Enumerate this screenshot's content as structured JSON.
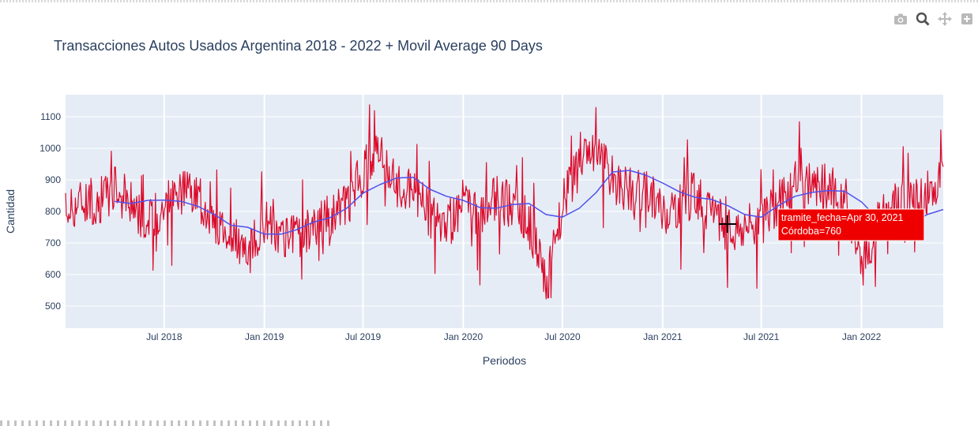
{
  "modebar": {
    "icons": [
      "camera-icon",
      "zoom-icon",
      "pan-icon",
      "plus-square-icon"
    ],
    "icon_color": "#b9b9b9",
    "active_color": "#505050"
  },
  "chart_data": {
    "type": "line",
    "title": "Transacciones Autos Usados Argentina 2018 - 2022 + Movil Average 90 Days",
    "xlabel": "Periodos",
    "ylabel": "Cantidad",
    "x_range": [
      "2018-01-01",
      "2022-05-31"
    ],
    "ylim": [
      430,
      1170
    ],
    "x_ticks": [
      {
        "date": "2018-07-01",
        "label": "Jul 2018"
      },
      {
        "date": "2019-01-01",
        "label": "Jan 2019"
      },
      {
        "date": "2019-07-01",
        "label": "Jul 2019"
      },
      {
        "date": "2020-01-01",
        "label": "Jan 2020"
      },
      {
        "date": "2020-07-01",
        "label": "Jul 2020"
      },
      {
        "date": "2021-01-01",
        "label": "Jan 2021"
      },
      {
        "date": "2021-07-01",
        "label": "Jul 2021"
      },
      {
        "date": "2022-01-01",
        "label": "Jan 2022"
      }
    ],
    "y_ticks": [
      500,
      600,
      700,
      800,
      900,
      1000,
      1100
    ],
    "grid": true,
    "plot_bgcolor": "#e5ecf6",
    "series": [
      {
        "color": "#dc0a2a",
        "points": [
          [
            "2018-01-01",
            800
          ],
          [
            "2018-02-01",
            840
          ],
          [
            "2018-03-01",
            830
          ],
          [
            "2018-04-01",
            870
          ],
          [
            "2018-05-01",
            830
          ],
          [
            "2018-06-01",
            760
          ],
          [
            "2018-07-01",
            820
          ],
          [
            "2018-08-01",
            860
          ],
          [
            "2018-09-01",
            840
          ],
          [
            "2018-10-01",
            770
          ],
          [
            "2018-11-01",
            740
          ],
          [
            "2018-12-01",
            650
          ],
          [
            "2019-01-01",
            770
          ],
          [
            "2019-02-01",
            700
          ],
          [
            "2019-03-01",
            720
          ],
          [
            "2019-04-01",
            750
          ],
          [
            "2019-05-01",
            790
          ],
          [
            "2019-06-01",
            810
          ],
          [
            "2019-07-01",
            930
          ],
          [
            "2019-08-01",
            980
          ],
          [
            "2019-09-01",
            880
          ],
          [
            "2019-10-01",
            870
          ],
          [
            "2019-11-01",
            790
          ],
          [
            "2019-12-01",
            750
          ],
          [
            "2020-01-01",
            830
          ],
          [
            "2020-02-01",
            780
          ],
          [
            "2020-03-01",
            840
          ],
          [
            "2020-04-01",
            820
          ],
          [
            "2020-05-01",
            760
          ],
          [
            "2020-06-01",
            560
          ],
          [
            "2020-07-01",
            820
          ],
          [
            "2020-08-01",
            940
          ],
          [
            "2020-09-01",
            990
          ],
          [
            "2020-10-01",
            900
          ],
          [
            "2020-11-01",
            870
          ],
          [
            "2020-12-01",
            870
          ],
          [
            "2021-01-01",
            800
          ],
          [
            "2021-02-01",
            820
          ],
          [
            "2021-03-01",
            860
          ],
          [
            "2021-04-01",
            800
          ],
          [
            "2021-05-01",
            730
          ],
          [
            "2021-06-01",
            750
          ],
          [
            "2021-07-01",
            760
          ],
          [
            "2021-08-01",
            830
          ],
          [
            "2021-09-01",
            900
          ],
          [
            "2021-10-01",
            880
          ],
          [
            "2021-11-01",
            880
          ],
          [
            "2021-12-01",
            850
          ],
          [
            "2022-01-01",
            620
          ],
          [
            "2022-02-01",
            770
          ],
          [
            "2022-03-01",
            820
          ],
          [
            "2022-04-01",
            830
          ],
          [
            "2022-05-01",
            850
          ],
          [
            "2022-05-31",
            920
          ]
        ]
      },
      {
        "color": "#5050ee",
        "points": [
          [
            "2018-04-01",
            832
          ],
          [
            "2018-05-01",
            825
          ],
          [
            "2018-06-01",
            835
          ],
          [
            "2018-07-01",
            836
          ],
          [
            "2018-08-01",
            832
          ],
          [
            "2018-09-01",
            816
          ],
          [
            "2018-10-01",
            790
          ],
          [
            "2018-11-01",
            756
          ],
          [
            "2018-12-01",
            750
          ],
          [
            "2019-01-01",
            728
          ],
          [
            "2019-02-01",
            728
          ],
          [
            "2019-03-01",
            742
          ],
          [
            "2019-04-01",
            766
          ],
          [
            "2019-05-01",
            780
          ],
          [
            "2019-06-01",
            810
          ],
          [
            "2019-07-01",
            858
          ],
          [
            "2019-08-01",
            885
          ],
          [
            "2019-09-01",
            906
          ],
          [
            "2019-10-01",
            908
          ],
          [
            "2019-11-01",
            870
          ],
          [
            "2019-12-01",
            848
          ],
          [
            "2020-01-01",
            835
          ],
          [
            "2020-02-01",
            812
          ],
          [
            "2020-03-01",
            810
          ],
          [
            "2020-04-01",
            822
          ],
          [
            "2020-05-01",
            825
          ],
          [
            "2020-06-01",
            790
          ],
          [
            "2020-07-01",
            782
          ],
          [
            "2020-08-01",
            810
          ],
          [
            "2020-09-01",
            860
          ],
          [
            "2020-10-01",
            925
          ],
          [
            "2020-11-01",
            930
          ],
          [
            "2020-12-01",
            915
          ],
          [
            "2021-01-01",
            890
          ],
          [
            "2021-02-01",
            862
          ],
          [
            "2021-03-01",
            845
          ],
          [
            "2021-04-01",
            838
          ],
          [
            "2021-05-01",
            818
          ],
          [
            "2021-06-01",
            790
          ],
          [
            "2021-07-01",
            782
          ],
          [
            "2021-08-01",
            818
          ],
          [
            "2021-09-01",
            848
          ],
          [
            "2021-10-01",
            860
          ],
          [
            "2021-11-01",
            866
          ],
          [
            "2021-12-01",
            864
          ],
          [
            "2022-01-01",
            830
          ],
          [
            "2022-02-01",
            775
          ],
          [
            "2022-03-01",
            762
          ],
          [
            "2022-04-01",
            758
          ],
          [
            "2022-05-01",
            790
          ],
          [
            "2022-05-31",
            806
          ]
        ]
      }
    ],
    "hover": {
      "date": "2021-04-30",
      "value": 760,
      "line1": "tramite_fecha=Apr 30, 2021",
      "line2": "Córdoba=760",
      "bgcolor": "#ee0000"
    }
  }
}
